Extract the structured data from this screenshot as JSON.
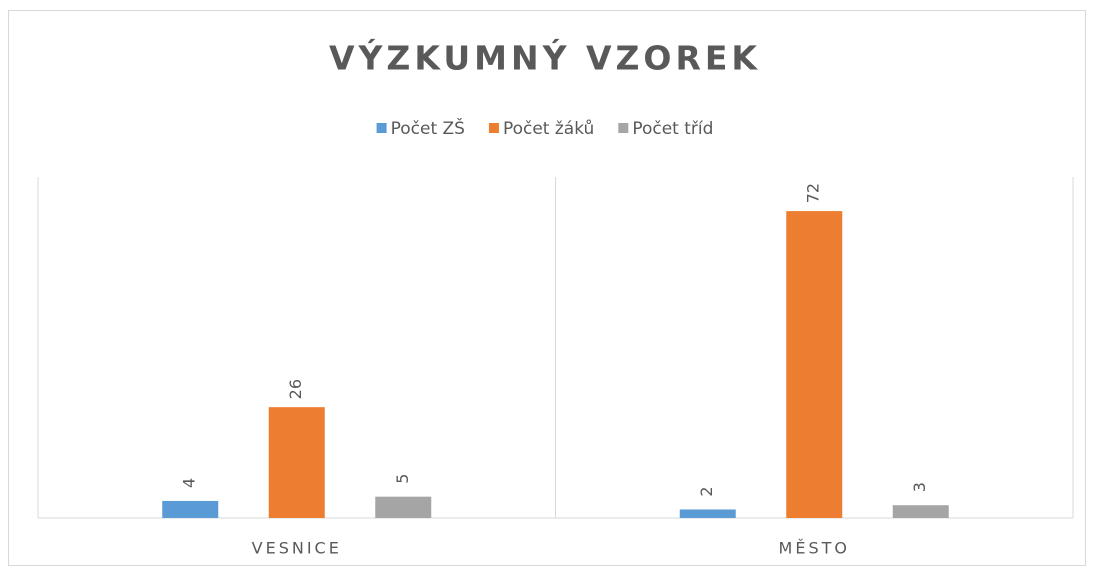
{
  "chart_data": {
    "type": "bar",
    "title": "VÝZKUMNÝ VZOREK",
    "categories": [
      "VESNICE",
      "MĚSTO"
    ],
    "series": [
      {
        "name": "Počet ZŠ",
        "color": "#5b9bd5",
        "values": [
          4,
          2
        ]
      },
      {
        "name": "Počet žáků",
        "color": "#ed7d31",
        "values": [
          26,
          72
        ]
      },
      {
        "name": "Počet tříd",
        "color": "#a5a5a5",
        "values": [
          5,
          3
        ]
      }
    ],
    "ylim": [
      0,
      80
    ],
    "legend": "top"
  }
}
